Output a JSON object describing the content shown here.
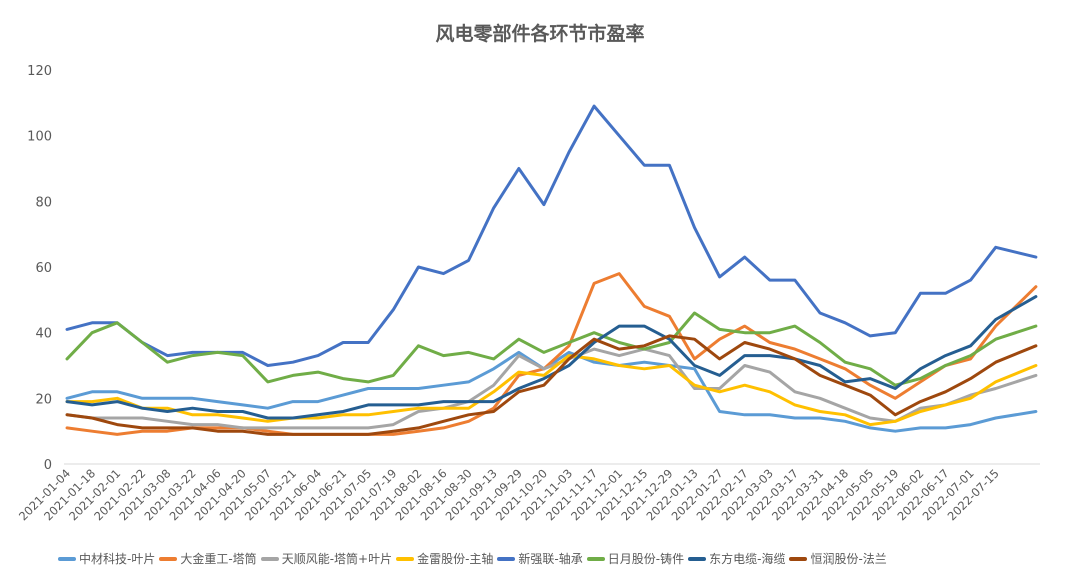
{
  "chart_data": {
    "type": "line",
    "title": "风电零部件各环节市盈率",
    "xlabel": "",
    "ylabel": "",
    "ylim": [
      0,
      120
    ],
    "yticks": [
      0,
      20,
      40,
      60,
      80,
      100,
      120
    ],
    "grid": false,
    "legend_position": "bottom",
    "categories": [
      "2021-01-04",
      "2021-01-18",
      "2021-02-01",
      "2021-02-22",
      "2021-03-08",
      "2021-03-22",
      "2021-04-06",
      "2021-04-20",
      "2021-05-07",
      "2021-05-21",
      "2021-06-04",
      "2021-06-21",
      "2021-07-05",
      "2021-07-19",
      "2021-08-02",
      "2021-08-16",
      "2021-08-30",
      "2021-09-13",
      "2021-09-29",
      "2021-10-20",
      "2021-11-03",
      "2021-11-17",
      "2021-12-01",
      "2021-12-15",
      "2021-12-29",
      "2022-01-13",
      "2022-01-27",
      "2022-02-17",
      "2022-03-03",
      "2022-03-17",
      "2022-03-31",
      "2022-04-18",
      "2022-05-05",
      "2022-05-19",
      "2022-06-02",
      "2022-06-17",
      "2022-07-01",
      "2022-07-15",
      ""
    ],
    "series": [
      {
        "name": "中材科技-叶片",
        "color": "#5B9BD5",
        "values": [
          20,
          22,
          22,
          20,
          20,
          20,
          19,
          18,
          17,
          19,
          19,
          21,
          23,
          23,
          23,
          24,
          25,
          29,
          34,
          29,
          34,
          31,
          30,
          31,
          30,
          29,
          16,
          15,
          15,
          14,
          14,
          13,
          11,
          10,
          11,
          11,
          12,
          14,
          16
        ]
      },
      {
        "name": "大金重工-塔筒",
        "color": "#ED7D31",
        "values": [
          11,
          10,
          9,
          10,
          10,
          11,
          11,
          11,
          10,
          9,
          9,
          9,
          9,
          9,
          10,
          11,
          13,
          17,
          27,
          29,
          36,
          55,
          58,
          48,
          45,
          32,
          38,
          42,
          37,
          35,
          32,
          29,
          24,
          20,
          25,
          30,
          32,
          42,
          54
        ]
      },
      {
        "name": "天顺风能-塔筒+叶片",
        "color": "#A5A5A5",
        "values": [
          15,
          14,
          14,
          14,
          13,
          12,
          12,
          11,
          11,
          11,
          11,
          11,
          11,
          12,
          16,
          17,
          19,
          24,
          33,
          29,
          32,
          35,
          33,
          35,
          33,
          23,
          23,
          30,
          28,
          22,
          20,
          17,
          14,
          13,
          17,
          18,
          21,
          23,
          27
        ]
      },
      {
        "name": "金雷股份-主轴",
        "color": "#FFC000",
        "values": [
          19,
          19,
          20,
          17,
          17,
          15,
          15,
          14,
          13,
          14,
          14,
          15,
          15,
          16,
          17,
          17,
          17,
          22,
          28,
          27,
          33,
          32,
          30,
          29,
          30,
          24,
          22,
          24,
          22,
          18,
          16,
          15,
          12,
          13,
          16,
          18,
          20,
          25,
          30
        ]
      },
      {
        "name": "新强联-轴承",
        "color": "#4472C4",
        "values": [
          41,
          43,
          43,
          37,
          33,
          34,
          34,
          34,
          30,
          31,
          33,
          37,
          37,
          47,
          60,
          58,
          62,
          78,
          90,
          79,
          95,
          109,
          100,
          91,
          91,
          72,
          57,
          63,
          56,
          56,
          46,
          43,
          39,
          40,
          52,
          52,
          56,
          66,
          63
        ]
      },
      {
        "name": "日月股份-铸件",
        "color": "#70AD47",
        "values": [
          32,
          40,
          43,
          37,
          31,
          33,
          34,
          33,
          25,
          27,
          28,
          26,
          25,
          27,
          36,
          33,
          34,
          32,
          38,
          34,
          37,
          40,
          37,
          35,
          37,
          46,
          41,
          40,
          40,
          42,
          37,
          31,
          29,
          24,
          26,
          30,
          33,
          38,
          42
        ]
      },
      {
        "name": "东方电缆-海缆",
        "color": "#255E91",
        "values": [
          19,
          18,
          19,
          17,
          16,
          17,
          16,
          16,
          14,
          14,
          15,
          16,
          18,
          18,
          18,
          19,
          19,
          19,
          23,
          26,
          30,
          37,
          42,
          42,
          38,
          30,
          27,
          33,
          33,
          32,
          30,
          25,
          26,
          23,
          29,
          33,
          36,
          44,
          51
        ]
      },
      {
        "name": "恒润股份-法兰",
        "color": "#9E480E",
        "values": [
          15,
          14,
          12,
          11,
          11,
          11,
          10,
          10,
          9,
          9,
          9,
          9,
          9,
          10,
          11,
          13,
          15,
          16,
          22,
          24,
          32,
          38,
          35,
          36,
          39,
          38,
          32,
          37,
          35,
          32,
          27,
          24,
          21,
          15,
          19,
          22,
          26,
          31,
          36
        ]
      }
    ]
  }
}
